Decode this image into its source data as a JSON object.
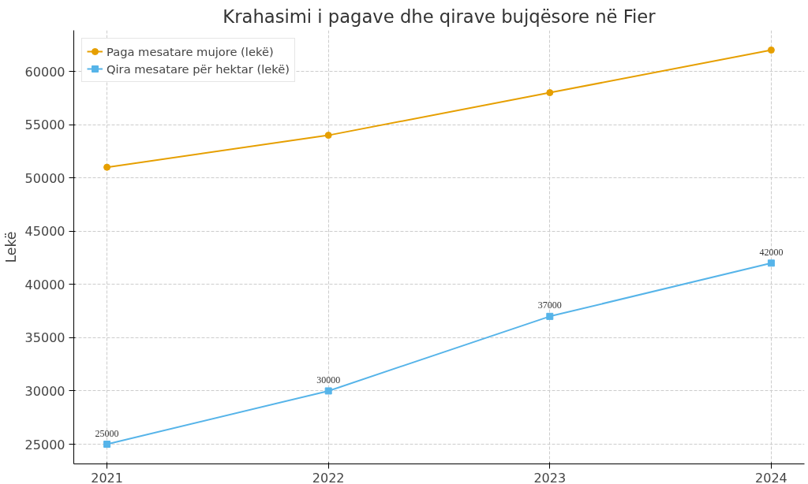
{
  "chart_data": {
    "type": "line",
    "title": "Krahasimi i pagave dhe qirave bujqësore në Fier",
    "ylabel": "Lekë",
    "x": [
      2021,
      2022,
      2023,
      2024
    ],
    "series": [
      {
        "name": "Paga mesatare mujore (lekë)",
        "color": "#e69f00",
        "marker": "circle",
        "values": [
          51000,
          54000,
          58000,
          62000
        ]
      },
      {
        "name": "Qira mesatare për hektar (lekë)",
        "color": "#56b4e9",
        "marker": "square",
        "values": [
          25000,
          30000,
          37000,
          42000
        ],
        "value_labels": [
          "25000",
          "30000",
          "37000",
          "42000"
        ]
      }
    ],
    "xlim": [
      2020.85,
      2024.15
    ],
    "xticks": [
      2021,
      2022,
      2023,
      2024
    ],
    "ylim": [
      23150,
      63850
    ],
    "yticks": [
      25000,
      30000,
      35000,
      40000,
      45000,
      50000,
      55000,
      60000
    ],
    "grid": true,
    "legend": "top left",
    "line_style": "solid"
  }
}
